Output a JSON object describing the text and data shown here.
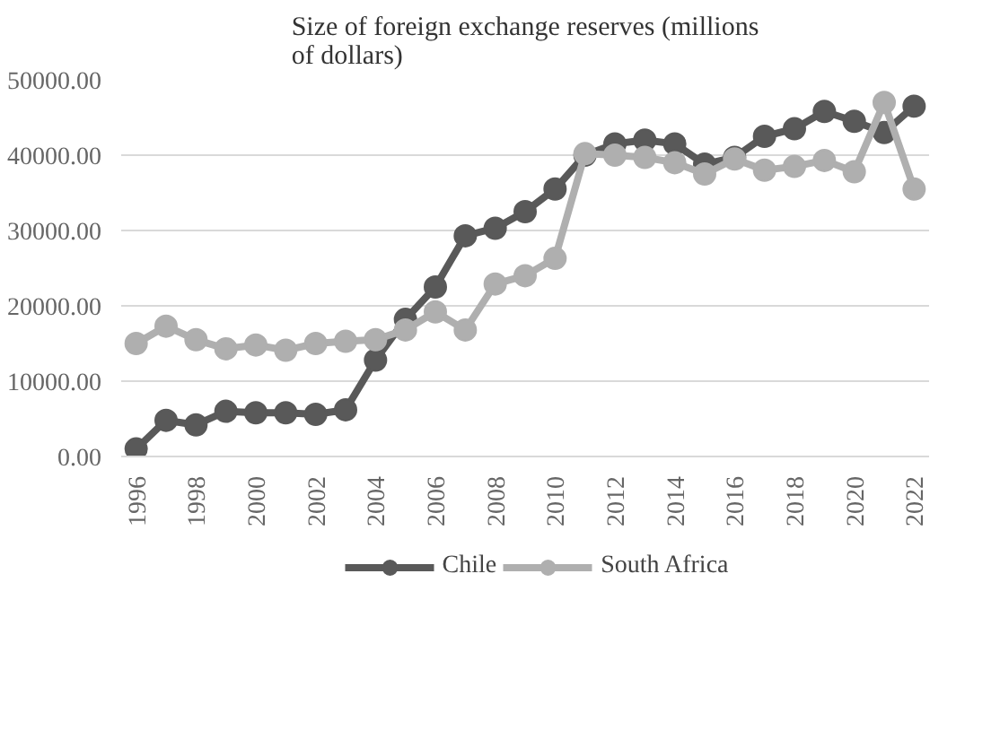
{
  "chart_data": {
    "type": "line",
    "title": "Size of foreign exchange reserves (millions of dollars)",
    "categories": [
      "1996",
      null,
      "1998",
      null,
      "2000",
      null,
      "2002",
      null,
      "2004",
      null,
      "2006",
      null,
      "2008",
      null,
      "2010",
      null,
      "2012",
      null,
      "2014",
      null,
      "2016",
      null,
      "2018",
      null,
      "2020",
      null,
      "2022"
    ],
    "series": [
      {
        "name": "Chile",
        "color": "#595959",
        "values": [
          1000,
          4800,
          4200,
          6000,
          5800,
          5800,
          5600,
          6200,
          12800,
          18200,
          22500,
          29300,
          30300,
          32500,
          35500,
          40000,
          41500,
          42000,
          41500,
          38800,
          39700,
          42500,
          43500,
          45800,
          44500,
          43000,
          46500
        ]
      },
      {
        "name": "South Africa",
        "color": "#afafaf",
        "values": [
          15000,
          17300,
          15500,
          14300,
          14800,
          14100,
          15000,
          15300,
          15500,
          16800,
          19200,
          16800,
          22900,
          24000,
          26300,
          40200,
          40000,
          39700,
          39000,
          37500,
          39500,
          38000,
          38500,
          39300,
          37800,
          47000,
          35500
        ]
      }
    ],
    "ylim": [
      0,
      50000
    ],
    "yticks": [
      {
        "value": 0,
        "label": "0.00"
      },
      {
        "value": 10000,
        "label": "10000.00"
      },
      {
        "value": 20000,
        "label": "20000.00"
      },
      {
        "value": 30000,
        "label": "30000.00"
      },
      {
        "value": 40000,
        "label": "40000.00"
      },
      {
        "value": 50000,
        "label": "50000.00"
      }
    ],
    "grid": "y",
    "legend": "bottom",
    "marker": "circle",
    "line_style": "solid"
  }
}
